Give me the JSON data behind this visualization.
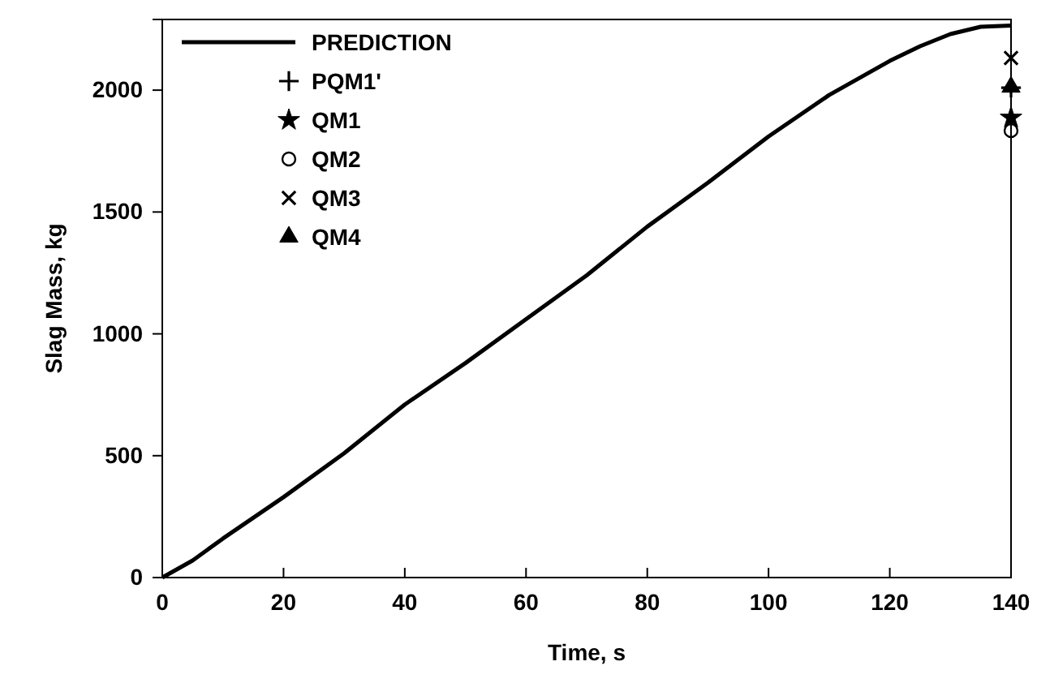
{
  "chart_data": {
    "type": "line",
    "xlabel": "Time, s",
    "ylabel": "Slag Mass, kg",
    "xlim": [
      0,
      140
    ],
    "xticks": [
      0,
      20,
      40,
      60,
      80,
      100,
      120,
      140
    ],
    "ylim": [
      0,
      2290
    ],
    "yticks": [
      0,
      500,
      1000,
      1500,
      2000
    ],
    "grid": false,
    "legend": "top left",
    "series": [
      {
        "name": "PREDICTION",
        "color": "#000000",
        "line_style": "solid",
        "marker": "none",
        "x": [
          0,
          5,
          10,
          20,
          30,
          40,
          50,
          60,
          70,
          80,
          90,
          100,
          110,
          120,
          125,
          130,
          135,
          140
        ],
        "values": [
          0,
          70,
          160,
          330,
          510,
          710,
          880,
          1060,
          1240,
          1440,
          1620,
          1810,
          1980,
          2120,
          2180,
          2230,
          2260,
          2265
        ]
      },
      {
        "name": "PQM1'",
        "type": "scatter",
        "color": "#000000",
        "marker": "cross",
        "x": [
          140
        ],
        "values": [
          2010
        ]
      },
      {
        "name": "QM1",
        "type": "scatter",
        "color": "#000000",
        "marker": "star",
        "x": [
          140
        ],
        "values": [
          1887
        ]
      },
      {
        "name": "QM2",
        "type": "scatter",
        "color": "#000000",
        "marker": "circle",
        "x": [
          140
        ],
        "values": [
          1834
        ]
      },
      {
        "name": "QM3",
        "type": "scatter",
        "color": "#000000",
        "marker": "x",
        "x": [
          140
        ],
        "values": [
          2132
        ]
      },
      {
        "name": "QM4",
        "type": "scatter",
        "color": "#000000",
        "marker": "triangle",
        "x": [
          140
        ],
        "values": [
          2013
        ]
      }
    ]
  }
}
